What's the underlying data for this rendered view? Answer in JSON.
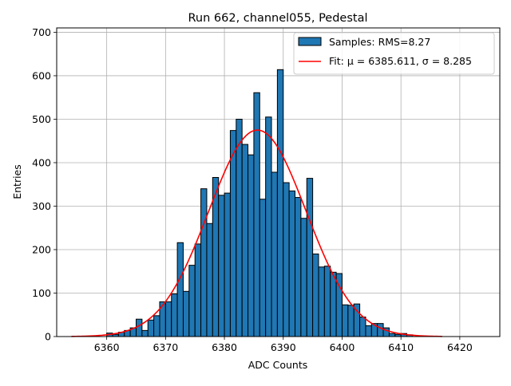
{
  "chart_data": {
    "type": "bar",
    "title": "Run 662, channel055, Pedestal",
    "xlabel": "ADC Counts",
    "ylabel": "Entries",
    "xlim": [
      6351.5,
      6426.8
    ],
    "ylim": [
      0,
      710
    ],
    "xticks": [
      6360,
      6370,
      6380,
      6390,
      6400,
      6410,
      6420
    ],
    "yticks": [
      0,
      100,
      200,
      300,
      400,
      500,
      600,
      700
    ],
    "grid": true,
    "legend_position": "top-right",
    "colors": {
      "bars": "#1f77b4",
      "bar_edge": "#000000",
      "fit": "#ff0000",
      "grid": "#b0b0b0"
    },
    "series": [
      {
        "name": "Samples: RMS=8.27",
        "kind": "histogram",
        "bin_width": 1,
        "x": [
          6360,
          6361,
          6362,
          6363,
          6364,
          6365,
          6366,
          6367,
          6368,
          6369,
          6370,
          6371,
          6372,
          6373,
          6374,
          6375,
          6376,
          6377,
          6378,
          6379,
          6380,
          6381,
          6382,
          6383,
          6384,
          6385,
          6386,
          6387,
          6388,
          6389,
          6390,
          6391,
          6392,
          6393,
          6394,
          6395,
          6396,
          6397,
          6398,
          6399,
          6400,
          6401,
          6402,
          6403,
          6404,
          6405,
          6406,
          6407,
          6408,
          6409,
          6410,
          6411
        ],
        "values": [
          8,
          5,
          10,
          14,
          20,
          40,
          14,
          38,
          48,
          80,
          80,
          98,
          216,
          104,
          164,
          213,
          340,
          260,
          366,
          325,
          330,
          474,
          500,
          442,
          418,
          561,
          316,
          505,
          378,
          614,
          354,
          335,
          320,
          272,
          364,
          190,
          160,
          162,
          148,
          145,
          73,
          72,
          75,
          45,
          25,
          30,
          30,
          20,
          7,
          5,
          7,
          4
        ]
      },
      {
        "name": "Fit: μ = 6385.611, σ = 8.285",
        "kind": "gaussian",
        "mu": 6385.611,
        "sigma": 8.285,
        "amplitude": 475,
        "x_range": [
          6354,
          6417
        ]
      }
    ]
  }
}
